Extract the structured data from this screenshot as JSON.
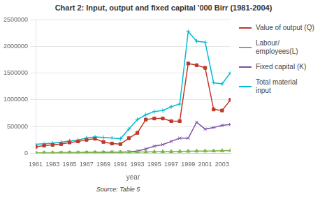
{
  "chart_data": {
    "type": "line",
    "title": "Chart 2: Input, output and fixed capital '000 Birr (1981-2004)",
    "xlabel": "year",
    "annotation": "Source: Table 5",
    "x": [
      1981,
      1982,
      1983,
      1984,
      1985,
      1986,
      1987,
      1988,
      1989,
      1990,
      1991,
      1992,
      1993,
      1994,
      1995,
      1996,
      1997,
      1998,
      1999,
      2000,
      2001,
      2002,
      2003,
      2004
    ],
    "series": [
      {
        "name": "Value of output (Q)",
        "color": "#c0392b",
        "marker": "square",
        "values": [
          120000,
          140000,
          155000,
          170000,
          200000,
          220000,
          250000,
          270000,
          210000,
          180000,
          170000,
          280000,
          380000,
          630000,
          650000,
          650000,
          600000,
          600000,
          1680000,
          1650000,
          1600000,
          820000,
          800000,
          1000000
        ]
      },
      {
        "name": "Labour/\nemployees(L)",
        "color": "#7ab648",
        "marker": "triangle",
        "values": [
          5000,
          6000,
          7000,
          8000,
          9000,
          10000,
          12000,
          13000,
          14000,
          15000,
          16000,
          18000,
          20000,
          22000,
          25000,
          28000,
          30000,
          33000,
          35000,
          38000,
          40000,
          42000,
          45000,
          50000
        ]
      },
      {
        "name": "Fixed capital (K)",
        "color": "#7b52a6",
        "marker": "x",
        "values": [
          5000,
          6000,
          7000,
          8000,
          9000,
          10000,
          12000,
          14000,
          16000,
          18000,
          20000,
          25000,
          40000,
          80000,
          130000,
          160000,
          220000,
          280000,
          280000,
          580000,
          450000,
          480000,
          520000,
          540000
        ]
      },
      {
        "name": "Total material\ninput",
        "color": "#00bcd4",
        "marker": "plus",
        "values": [
          165000,
          175000,
          185000,
          205000,
          230000,
          245000,
          285000,
          305000,
          295000,
          285000,
          270000,
          450000,
          630000,
          720000,
          780000,
          800000,
          870000,
          920000,
          2280000,
          2100000,
          2080000,
          1320000,
          1300000,
          1510000
        ]
      }
    ],
    "xlim": [
      1981,
      2004
    ],
    "xticks": [
      1981,
      1983,
      1985,
      1987,
      1989,
      1991,
      1993,
      1995,
      1997,
      1999,
      2001,
      2003
    ],
    "ylim": [
      0,
      2500000
    ],
    "yticks": [
      0,
      500000,
      1000000,
      1500000,
      2000000,
      2500000
    ],
    "grid": "y",
    "legend": "right"
  }
}
